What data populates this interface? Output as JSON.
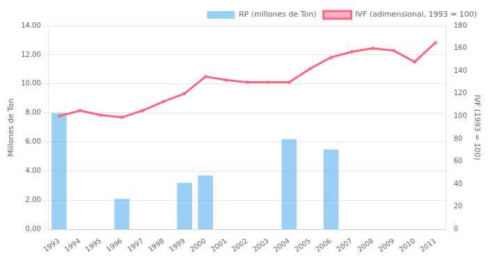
{
  "chart_data": {
    "type": "bar",
    "categories": [
      "1993",
      "1994",
      "1995",
      "1996",
      "1997",
      "1998",
      "1999",
      "2000",
      "2001",
      "2002",
      "2003",
      "2004",
      "2005",
      "2006",
      "2007",
      "2008",
      "2009",
      "2010",
      "2011"
    ],
    "series": [
      {
        "name": "RP (millones de Ton)",
        "type": "bar",
        "values": [
          8.0,
          0,
          0,
          2.1,
          0,
          0,
          3.2,
          3.7,
          0,
          0,
          0,
          6.2,
          0,
          5.5,
          0,
          0,
          0,
          0,
          0
        ]
      },
      {
        "name": "IVF (adimensional, 1993 = 100)",
        "type": "line",
        "axis": "y2",
        "values": [
          100,
          105,
          101,
          99,
          105,
          113,
          120,
          135,
          132,
          130,
          130,
          130,
          142,
          152,
          157,
          160,
          158,
          148,
          165
        ]
      }
    ],
    "ylabel": "Millones de Ton",
    "y2label": "IVF (1993 = 100)",
    "ylim": [
      0,
      14
    ],
    "yticks": [
      {
        "value": 0,
        "label": "0.00"
      },
      {
        "value": 2,
        "label": "2.00"
      },
      {
        "value": 4,
        "label": "4.00"
      },
      {
        "value": 6,
        "label": "6.00"
      },
      {
        "value": 8,
        "label": "8.00"
      },
      {
        "value": 10,
        "label": "10.00"
      },
      {
        "value": 12,
        "label": "12.00"
      },
      {
        "value": 14,
        "label": "14.00"
      }
    ],
    "y2lim": [
      0,
      180
    ],
    "y2ticks": [
      0,
      20,
      40,
      60,
      80,
      100,
      120,
      140,
      160,
      180
    ],
    "grid": true,
    "legend": "upper right"
  }
}
